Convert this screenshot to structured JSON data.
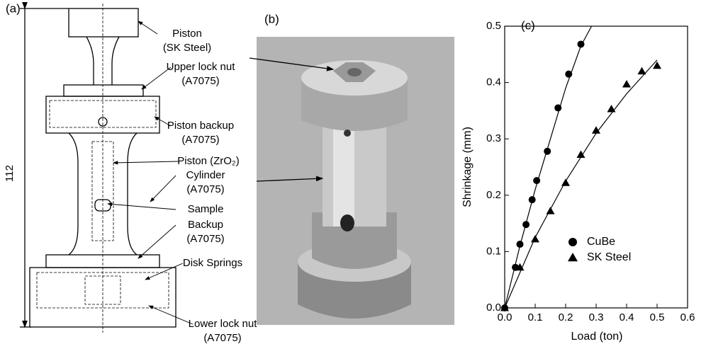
{
  "panel_a": {
    "label": "(a)",
    "dimension": "112",
    "callouts": [
      {
        "lines": [
          "Piston",
          "(SK Steel)"
        ]
      },
      {
        "lines": [
          "Upper lock nut",
          "(A7075)"
        ]
      },
      {
        "lines": [
          "Piston backup",
          "(A7075)"
        ]
      },
      {
        "lines": [
          "Piston (ZrO₂)"
        ]
      },
      {
        "lines": [
          "Cylinder",
          "(A7075)"
        ]
      },
      {
        "lines": [
          "Sample"
        ]
      },
      {
        "lines": [
          "Backup",
          "(A7075)"
        ]
      },
      {
        "lines": [
          "Disk Springs"
        ]
      },
      {
        "lines": [
          "Lower lock nut",
          "(A7075)"
        ]
      }
    ]
  },
  "panel_b": {
    "label": "(b)"
  },
  "chart_data": {
    "type": "scatter",
    "title": "(c)",
    "x_label": "Load (ton)",
    "y_label": "Shrinkage (mm)",
    "xlim": [
      0,
      0.6
    ],
    "ylim": [
      0,
      0.5
    ],
    "xticks": [
      {
        "value": 0,
        "label": "0.0"
      },
      0.1,
      0.2,
      0.3,
      0.4,
      0.5,
      0.6
    ],
    "yticks": [
      {
        "value": 0,
        "label": "0.0"
      },
      0.1,
      0.2,
      0.3,
      0.4,
      0.5
    ],
    "legend": "lower right",
    "series": [
      {
        "name": "CuBe",
        "marker": "circle",
        "color": "#000000",
        "x": [
          0,
          0.035,
          0.05,
          0.07,
          0.09,
          0.105,
          0.14,
          0.175,
          0.21,
          0.25
        ],
        "values": [
          0,
          0.072,
          0.113,
          0.148,
          0.192,
          0.226,
          0.278,
          0.355,
          0.415,
          0.468
        ]
      },
      {
        "name": "SK Steel",
        "marker": "triangle",
        "color": "#000000",
        "x": [
          0,
          0.05,
          0.1,
          0.15,
          0.2,
          0.25,
          0.3,
          0.35,
          0.4,
          0.45,
          0.5
        ],
        "values": [
          0,
          0.072,
          0.122,
          0.172,
          0.222,
          0.272,
          0.315,
          0.353,
          0.397,
          0.42,
          0.43
        ]
      },
      {
        "marker": "line",
        "color": "#000000",
        "x": [
          0,
          0.05,
          0.1,
          0.15,
          0.2,
          0.25,
          0.285
        ],
        "values": [
          0,
          0.11,
          0.21,
          0.3,
          0.39,
          0.465,
          0.5
        ]
      },
      {
        "marker": "line",
        "color": "#000000",
        "x": [
          0,
          0.1,
          0.2,
          0.3,
          0.4,
          0.5
        ],
        "values": [
          0,
          0.125,
          0.225,
          0.31,
          0.38,
          0.44
        ]
      }
    ]
  }
}
